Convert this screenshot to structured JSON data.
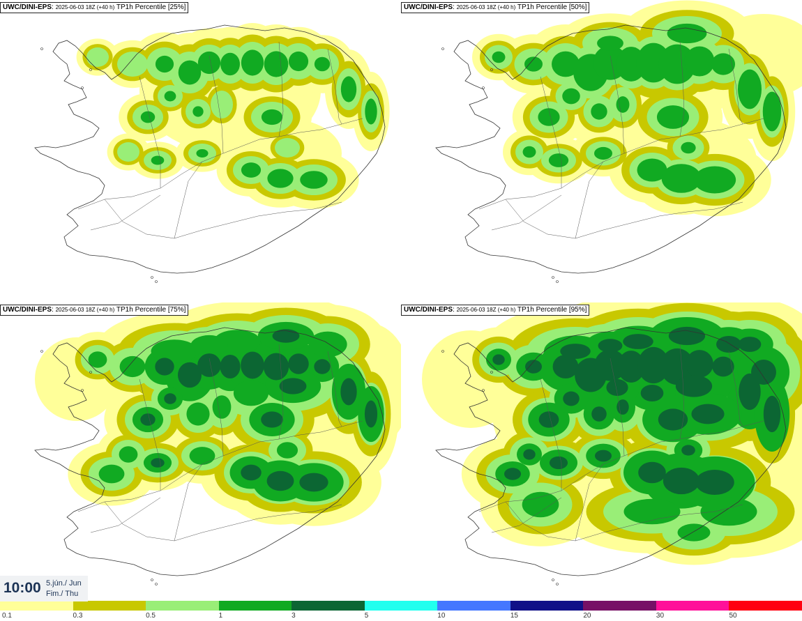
{
  "panels": [
    {
      "model": "UWC/DINI-EPS",
      "run": "2025-06-03 18Z (+40 h)",
      "product": "TP1h Percentile [25%]",
      "level": 0
    },
    {
      "model": "UWC/DINI-EPS",
      "run": "2025-06-03 18Z (+40 h)",
      "product": "TP1h Percentile [50%]",
      "level": 1
    },
    {
      "model": "UWC/DINI-EPS",
      "run": "2025-06-03 18Z (+40 h)",
      "product": "TP1h Percentile [75%]",
      "level": 2
    },
    {
      "model": "UWC/DINI-EPS",
      "run": "2025-06-03 18Z (+40 h)",
      "product": "TP1h Percentile [95%]",
      "level": 3
    }
  ],
  "valid_time": {
    "clock": "10:00",
    "date_line1": "5.jún./ Jun",
    "date_line2": "Fim./ Thu"
  },
  "legend": {
    "colors": [
      "#ffff99",
      "#c8c800",
      "#99ee77",
      "#11aa22",
      "#0c6633",
      "#22ffee",
      "#4477ff",
      "#111188",
      "#771166",
      "#ff1199",
      "#ff0011"
    ],
    "labels": [
      "0.1",
      "0.3",
      "0.5",
      "1",
      "3",
      "5",
      "10",
      "15",
      "20",
      "30",
      "50"
    ]
  },
  "colors": {
    "land": "#ffffff",
    "coast": "#333333",
    "roads": "#555555",
    "c01": "#ffff99",
    "c03": "#c8c800",
    "c05": "#99ee77",
    "c1": "#11aa22",
    "c3": "#0c6633"
  }
}
